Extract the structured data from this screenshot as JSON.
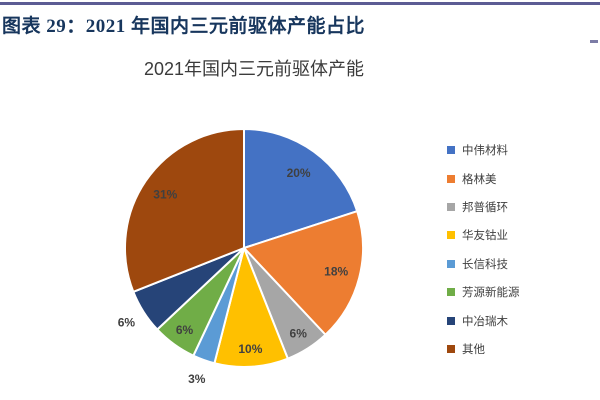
{
  "page": {
    "figure_caption": "图表 29：2021 年国内三元前驱体产能占比",
    "caption_color": "#17365D",
    "top_rule_color": "#5C5C94",
    "right_dash_color": "#7C7CA6",
    "background_color": "#FFFFFF"
  },
  "chart_data": {
    "type": "pie",
    "title": "2021年国内三元前驱体产能",
    "categories": [
      "中伟材料",
      "格林美",
      "邦普循环",
      "华友钴业",
      "长信科技",
      "芳源新能源",
      "中冶瑞木",
      "其他"
    ],
    "values": [
      20,
      18,
      6,
      10,
      3,
      6,
      6,
      31
    ],
    "labels": [
      "20%",
      "18%",
      "6%",
      "10%",
      "3%",
      "6%",
      "6%",
      "31%"
    ],
    "colors": [
      "#4472C4",
      "#ED7D31",
      "#A6A6A6",
      "#FFC000",
      "#5B9BD5",
      "#70AD47",
      "#264478",
      "#9E480E"
    ],
    "label_color": "#404040",
    "slice_border_color": "#FFFFFF",
    "legend_position": "right",
    "start_angle_deg": 0,
    "direction": "clockwise",
    "center": [
      244,
      248
    ],
    "radius": 119,
    "label_radius_factors": [
      0.78,
      0.8,
      0.85,
      0.85,
      1.17,
      0.85,
      1.17,
      0.8
    ]
  }
}
